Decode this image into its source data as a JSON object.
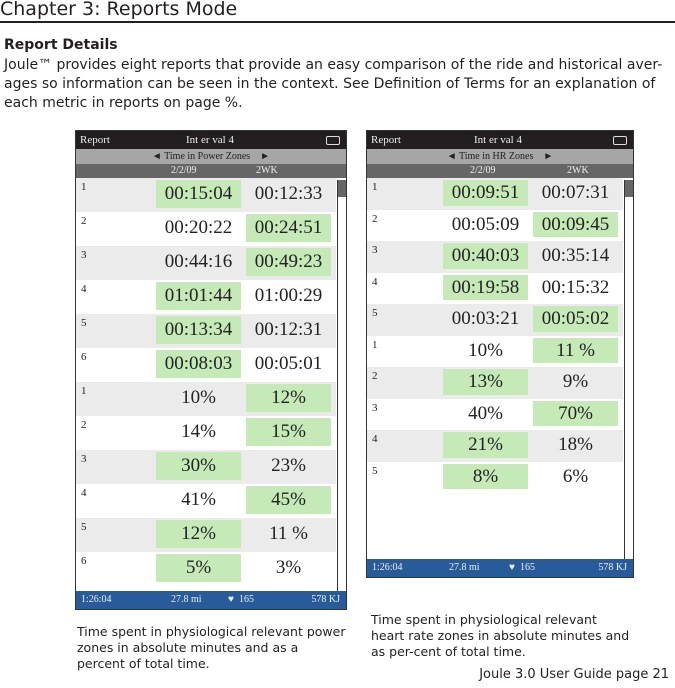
{
  "chapter": "Chapter 3: Reports Mode",
  "section_title": "Report Details",
  "body_text": "Joule™ provides eight reports that provide an easy comparison of the ride and historical aver-ages  so information can be seen in the context.  See Definition of Terms for an explanation of each metric in reports on page %.",
  "page_footer": "Joule 3.0 User Guide page 21",
  "colors": {
    "highlight": "#c5e9b7",
    "footer_bar": "#275b9a",
    "header_bar": "#231f20"
  },
  "devices": [
    {
      "mode": "Report",
      "title": "Int er val 4",
      "screen": "Time in Power Zones",
      "date": "2/2/09",
      "period": "2WK",
      "rows": [
        {
          "zone": "1",
          "a": "00:15:04",
          "b": "00:12:33",
          "hl": "a"
        },
        {
          "zone": "2",
          "a": "00:20:22",
          "b": "00:24:51",
          "hl": "b"
        },
        {
          "zone": "3",
          "a": "00:44:16",
          "b": "00:49:23",
          "hl": "b"
        },
        {
          "zone": "4",
          "a": "01:01:44",
          "b": "01:00:29",
          "hl": "a"
        },
        {
          "zone": "5",
          "a": "00:13:34",
          "b": "00:12:31",
          "hl": "a"
        },
        {
          "zone": "6",
          "a": "00:08:03",
          "b": "00:05:01",
          "hl": "a"
        },
        {
          "zone": "1",
          "a": "10%",
          "b": "12%",
          "hl": "b"
        },
        {
          "zone": "2",
          "a": "14%",
          "b": "15%",
          "hl": "b"
        },
        {
          "zone": "3",
          "a": "30%",
          "b": "23%",
          "hl": "a"
        },
        {
          "zone": "4",
          "a": "41%",
          "b": "45%",
          "hl": "b"
        },
        {
          "zone": "5",
          "a": "12%",
          "b": "11 %",
          "hl": "a"
        },
        {
          "zone": "6",
          "a": "5%",
          "b": "3%",
          "hl": "a"
        }
      ],
      "footer": {
        "time": "1:26:04",
        "distance": "27.8 mi",
        "heart_rate": "165",
        "energy": "578   KJ"
      },
      "caption": "Time spent in physiological relevant power zones in absolute minutes and as a percent of total time."
    },
    {
      "mode": "Report",
      "title": "Int er val 4",
      "screen": "Time in HR Zones",
      "date": "2/2/09",
      "period": "2WK",
      "rows": [
        {
          "zone": "1",
          "a": "00:09:51",
          "b": "00:07:31",
          "hl": "a"
        },
        {
          "zone": "2",
          "a": "00:05:09",
          "b": "00:09:45",
          "hl": "b"
        },
        {
          "zone": "3",
          "a": "00:40:03",
          "b": "00:35:14",
          "hl": "a"
        },
        {
          "zone": "4",
          "a": "00:19:58",
          "b": "00:15:32",
          "hl": "a"
        },
        {
          "zone": "5",
          "a": "00:03:21",
          "b": "00:05:02",
          "hl": "b"
        },
        {
          "zone": "1",
          "a": "10%",
          "b": "11 %",
          "hl": "b"
        },
        {
          "zone": "2",
          "a": "13%",
          "b": "9%",
          "hl": "a"
        },
        {
          "zone": "3",
          "a": "40%",
          "b": "70%",
          "hl": "b"
        },
        {
          "zone": "4",
          "a": "21%",
          "b": "18%",
          "hl": "a"
        },
        {
          "zone": "5",
          "a": "8%",
          "b": "6%",
          "hl": "a"
        }
      ],
      "footer": {
        "time": "1:26:04",
        "distance": "27.8 mi",
        "heart_rate": "165",
        "energy": "578   KJ"
      },
      "caption": "Time spent in physiological relevant heart rate zones in absolute minutes and as per-cent of total time."
    }
  ]
}
